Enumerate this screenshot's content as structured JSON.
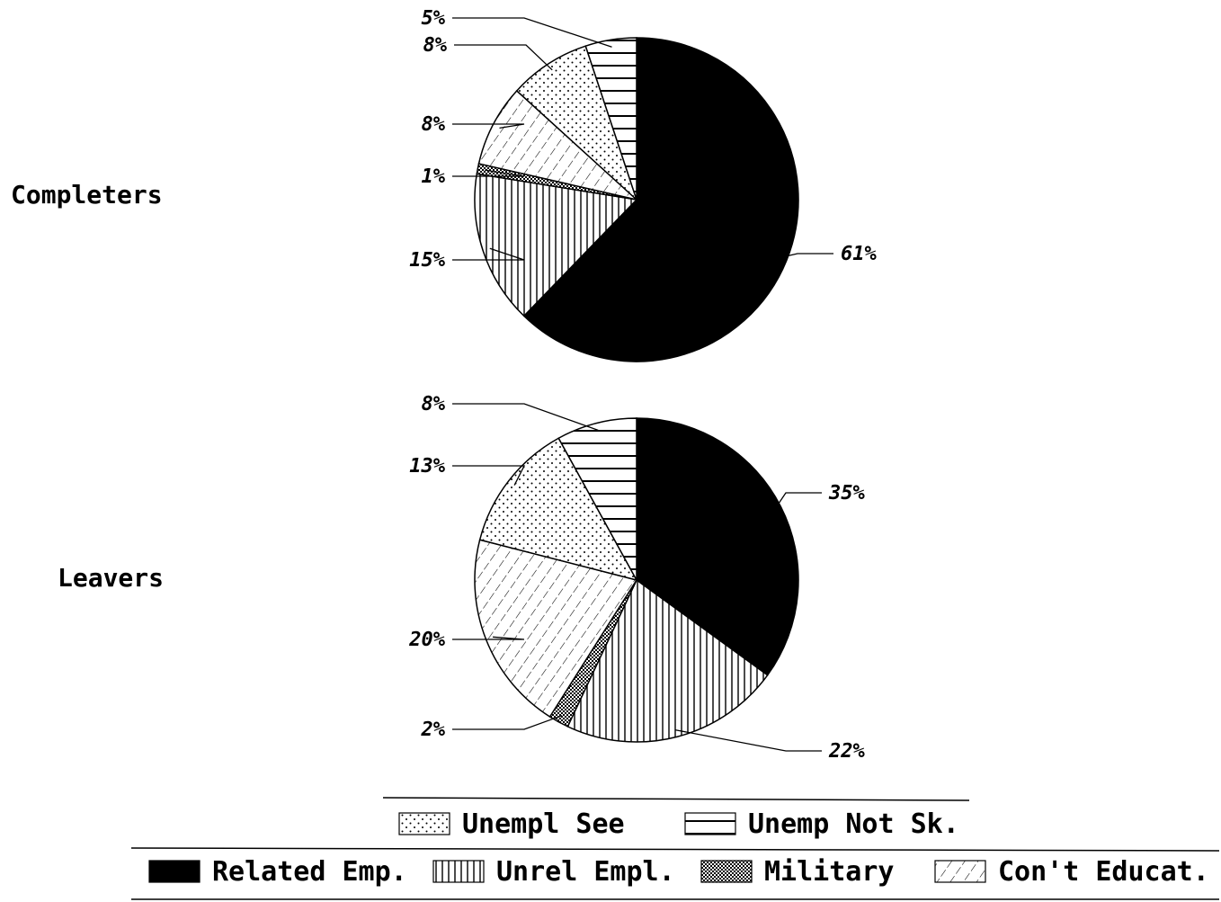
{
  "chart_data": [
    {
      "type": "pie",
      "title": "Completers",
      "slices": [
        {
          "name": "Related Emp.",
          "value": 61,
          "label": "61%"
        },
        {
          "name": "Unrel Empl.",
          "value": 15,
          "label": "15%"
        },
        {
          "name": "Military",
          "value": 1,
          "label": "1%"
        },
        {
          "name": "Con't Educat.",
          "value": 8,
          "label": "8%"
        },
        {
          "name": "Unempl See",
          "value": 8,
          "label": "8%"
        },
        {
          "name": "Unemp Not Sk.",
          "value": 5,
          "label": "5%"
        }
      ]
    },
    {
      "type": "pie",
      "title": "Leavers",
      "slices": [
        {
          "name": "Related Emp.",
          "value": 35,
          "label": "35%"
        },
        {
          "name": "Unrel Empl.",
          "value": 22,
          "label": "22%"
        },
        {
          "name": "Military",
          "value": 2,
          "label": "2%"
        },
        {
          "name": "Con't Educat.",
          "value": 20,
          "label": "20%"
        },
        {
          "name": "Unempl See",
          "value": 13,
          "label": "13%"
        },
        {
          "name": "Unemp Not Sk.",
          "value": 8,
          "label": "8%"
        }
      ]
    }
  ],
  "legend": [
    {
      "name": "Unempl See",
      "label": "Unempl See",
      "pattern": "dots"
    },
    {
      "name": "Unemp Not Sk.",
      "label": "Unemp Not Sk.",
      "pattern": "hlines"
    },
    {
      "name": "Related Emp.",
      "label": "Related Emp.",
      "pattern": "solid"
    },
    {
      "name": "Unrel Empl.",
      "label": "Unrel Empl.",
      "pattern": "vlines"
    },
    {
      "name": "Military",
      "label": "Military",
      "pattern": "crosshatch"
    },
    {
      "name": "Con't Educat.",
      "label": "Con't Educat.",
      "pattern": "diag"
    }
  ],
  "colors": {
    "ink": "#000000",
    "paper": "#ffffff"
  }
}
